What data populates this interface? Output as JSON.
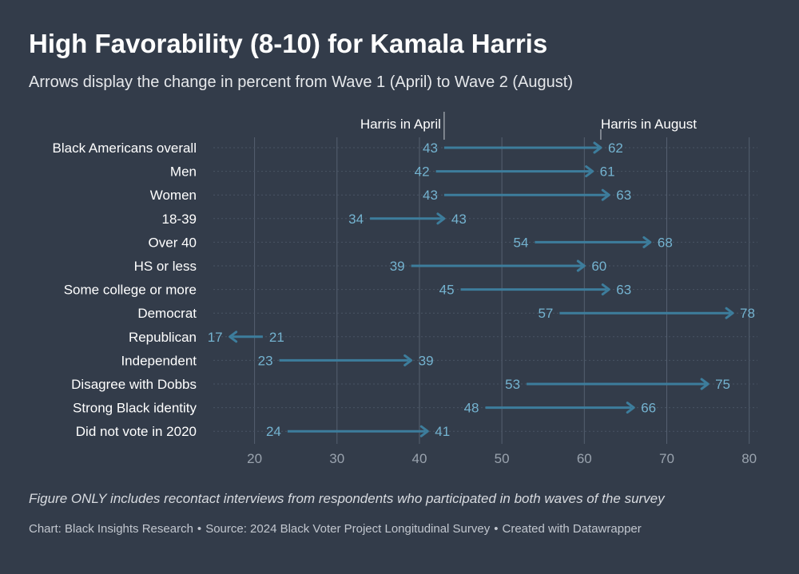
{
  "title": "High Favorability (8-10) for Kamala Harris",
  "subtitle": "Arrows display the change in percent from Wave 1 (April) to Wave 2 (August)",
  "note": "Figure ONLY includes recontact interviews from respondents who participated in both waves of the survey",
  "footer": {
    "chart_credit": "Chart: Black Insights Research",
    "source": "Source: 2024 Black Voter Project Longitudinal Survey",
    "created_with": "Created with Datawrapper",
    "separator": "•"
  },
  "colors": {
    "background": "#333c4a",
    "arrow": "#3d7d9c",
    "value_label": "#74b3d0",
    "grid": "#556070",
    "axis_tick": "#9aa3ae"
  },
  "chart_data": {
    "type": "arrow",
    "start_label": "Harris in April",
    "end_label": "Harris in August",
    "annotation_row": "Black Americans overall",
    "xlim": [
      15,
      81
    ],
    "xticks": [
      20,
      30,
      40,
      50,
      60,
      70,
      80
    ],
    "grid": true,
    "series": [
      {
        "name": "Harris in April",
        "wave": "Wave 1 (April)"
      },
      {
        "name": "Harris in August",
        "wave": "Wave 2 (August)"
      }
    ],
    "rows": [
      {
        "category": "Black Americans overall",
        "april": 43,
        "august": 62
      },
      {
        "category": "Men",
        "april": 42,
        "august": 61
      },
      {
        "category": "Women",
        "april": 43,
        "august": 63
      },
      {
        "category": "18-39",
        "april": 34,
        "august": 43
      },
      {
        "category": "Over 40",
        "april": 54,
        "august": 68
      },
      {
        "category": "HS or less",
        "april": 39,
        "august": 60
      },
      {
        "category": "Some college or more",
        "april": 45,
        "august": 63
      },
      {
        "category": "Democrat",
        "april": 57,
        "august": 78
      },
      {
        "category": "Republican",
        "april": 21,
        "august": 17
      },
      {
        "category": "Independent",
        "april": 23,
        "august": 39
      },
      {
        "category": "Disagree with Dobbs",
        "april": 53,
        "august": 75
      },
      {
        "category": "Strong Black identity",
        "april": 48,
        "august": 66
      },
      {
        "category": "Did not vote in 2020",
        "april": 24,
        "august": 41
      }
    ]
  }
}
